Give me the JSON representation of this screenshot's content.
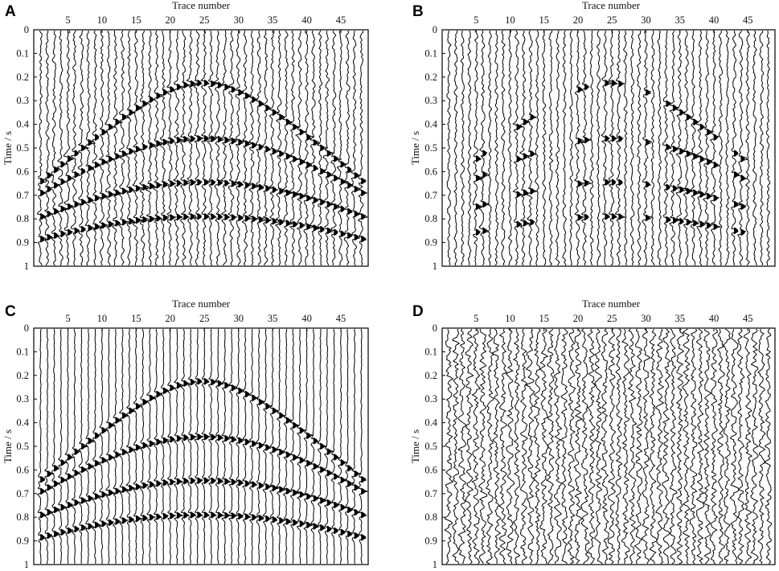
{
  "figure": {
    "panels": [
      {
        "label": "A",
        "xlabel": "Trace number",
        "ylabel": "Time / s"
      },
      {
        "label": "B",
        "xlabel": "Trace number",
        "ylabel": "Time / s"
      },
      {
        "label": "C",
        "xlabel": "Trace number",
        "ylabel": "Time / s"
      },
      {
        "label": "D",
        "xlabel": "Trace number",
        "ylabel": "Time / s"
      }
    ]
  },
  "chart_data": [
    {
      "type": "line",
      "panel": "A",
      "xlabel": "Trace number",
      "ylabel": "Time / s",
      "xlim": [
        0,
        49
      ],
      "ylim": [
        0,
        1
      ],
      "y_inverted": true,
      "x_axis_position": "top",
      "x_ticks": [
        5,
        10,
        15,
        20,
        25,
        30,
        35,
        40,
        45
      ],
      "y_ticks": [
        0,
        0.1,
        0.2,
        0.3,
        0.4,
        0.5,
        0.6,
        0.7,
        0.8,
        0.9,
        1
      ],
      "trace_count": 48,
      "events": [
        {
          "apex_trace": 24.5,
          "apex_time": 0.225,
          "edge_time": 0.64
        },
        {
          "apex_trace": 24.5,
          "apex_time": 0.46,
          "edge_time": 0.69
        },
        {
          "apex_trace": 24.5,
          "apex_time": 0.645,
          "edge_time": 0.79
        },
        {
          "apex_trace": 24.5,
          "apex_time": 0.79,
          "edge_time": 0.885
        }
      ],
      "noise_level": "low",
      "missing_traces": []
    },
    {
      "type": "line",
      "panel": "B",
      "xlabel": "Trace number",
      "ylabel": "Time / s",
      "xlim": [
        0,
        49
      ],
      "ylim": [
        0,
        1
      ],
      "y_inverted": true,
      "x_axis_position": "top",
      "x_ticks": [
        5,
        10,
        15,
        20,
        25,
        30,
        35,
        40,
        45
      ],
      "y_ticks": [
        0,
        0.1,
        0.2,
        0.3,
        0.4,
        0.5,
        0.6,
        0.7,
        0.8,
        0.9,
        1
      ],
      "trace_count": 48,
      "events": [
        {
          "apex_trace": 24.5,
          "apex_time": 0.225,
          "edge_time": 0.64
        },
        {
          "apex_trace": 24.5,
          "apex_time": 0.46,
          "edge_time": 0.69
        },
        {
          "apex_trace": 24.5,
          "apex_time": 0.645,
          "edge_time": 0.79
        },
        {
          "apex_trace": 24.5,
          "apex_time": 0.79,
          "edge_time": 0.885
        }
      ],
      "noise_level": "low",
      "missing_traces": [
        1,
        2,
        3,
        4,
        7,
        8,
        9,
        10,
        14,
        15,
        16,
        17,
        18,
        19,
        22,
        23,
        27,
        28,
        29,
        31,
        32,
        41,
        42,
        45,
        46,
        47,
        48
      ]
    },
    {
      "type": "line",
      "panel": "C",
      "xlabel": "Trace number",
      "ylabel": "Time / s",
      "xlim": [
        0,
        49
      ],
      "ylim": [
        0,
        1
      ],
      "y_inverted": true,
      "x_axis_position": "top",
      "x_ticks": [
        5,
        10,
        15,
        20,
        25,
        30,
        35,
        40,
        45
      ],
      "y_ticks": [
        0,
        0.1,
        0.2,
        0.3,
        0.4,
        0.5,
        0.6,
        0.7,
        0.8,
        0.9,
        1
      ],
      "trace_count": 48,
      "events": [
        {
          "apex_trace": 24.5,
          "apex_time": 0.225,
          "edge_time": 0.64
        },
        {
          "apex_trace": 24.5,
          "apex_time": 0.46,
          "edge_time": 0.69
        },
        {
          "apex_trace": 24.5,
          "apex_time": 0.645,
          "edge_time": 0.79
        },
        {
          "apex_trace": 24.5,
          "apex_time": 0.79,
          "edge_time": 0.885
        }
      ],
      "noise_level": "none",
      "missing_traces": []
    },
    {
      "type": "line",
      "panel": "D",
      "xlabel": "Trace number",
      "ylabel": "Time / s",
      "xlim": [
        0,
        49
      ],
      "ylim": [
        0,
        1
      ],
      "y_inverted": true,
      "x_axis_position": "top",
      "x_ticks": [
        5,
        10,
        15,
        20,
        25,
        30,
        35,
        40,
        45
      ],
      "y_ticks": [
        0,
        0.1,
        0.2,
        0.3,
        0.4,
        0.5,
        0.6,
        0.7,
        0.8,
        0.9,
        1
      ],
      "trace_count": 48,
      "events": [],
      "noise_level": "high",
      "missing_traces": []
    }
  ]
}
